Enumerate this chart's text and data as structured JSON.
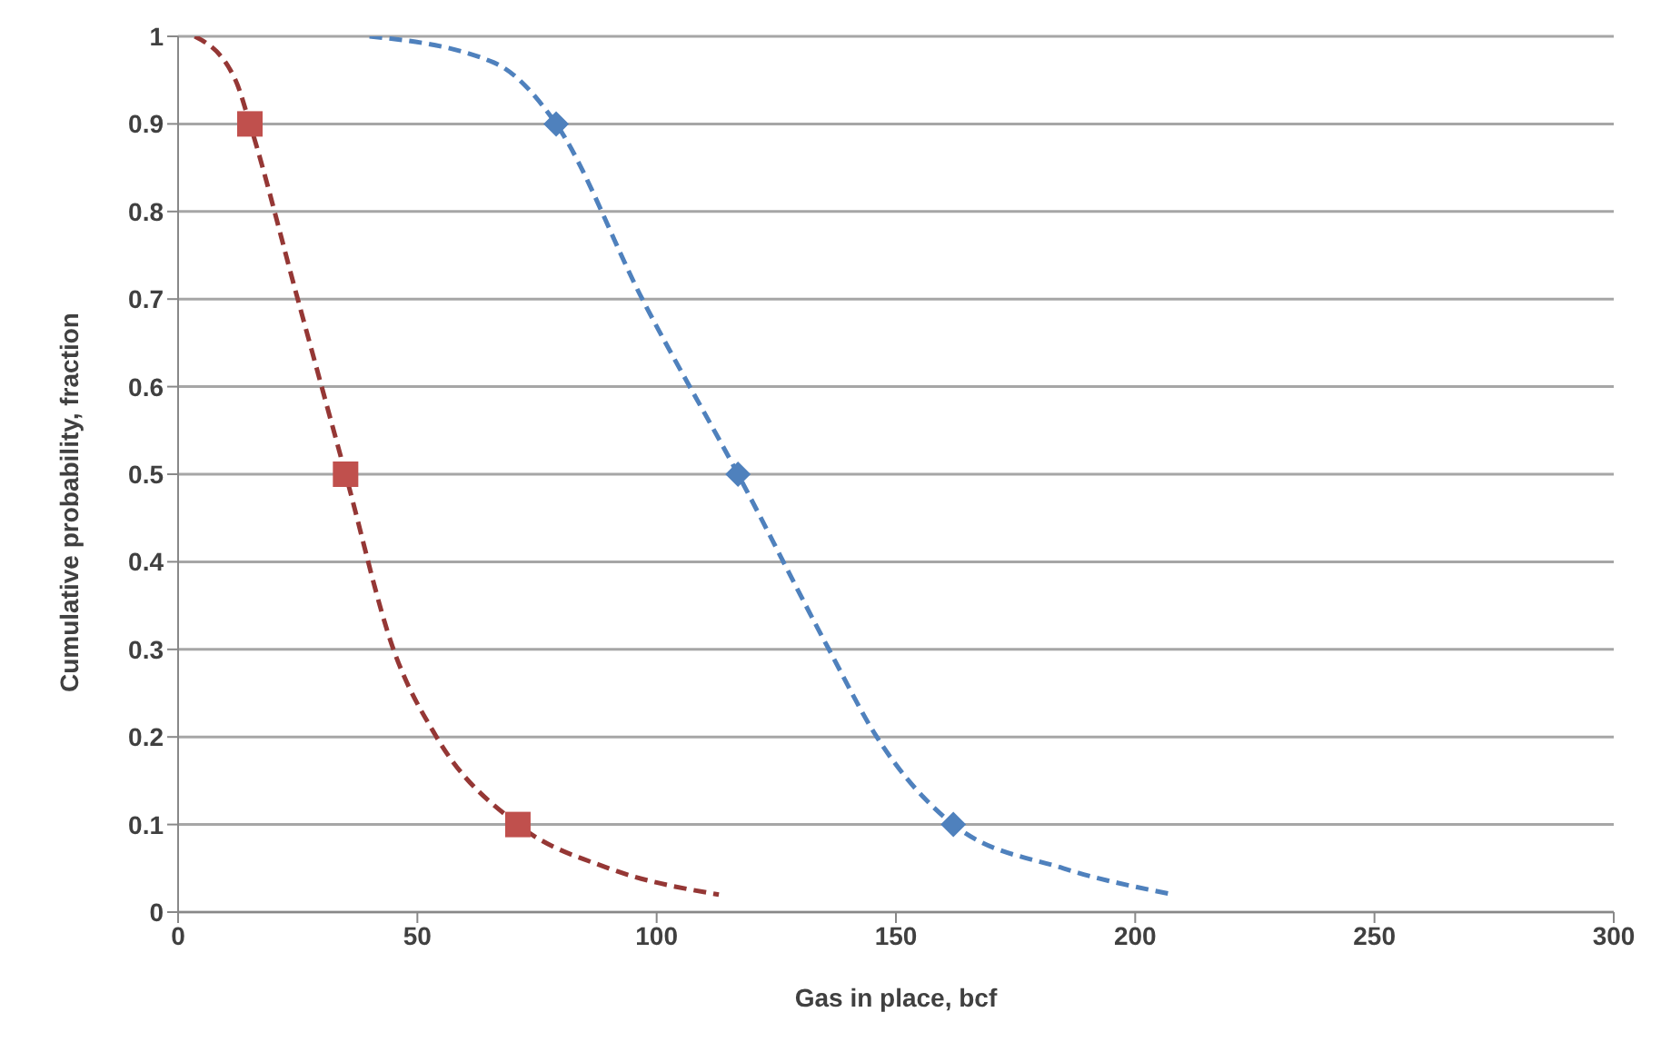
{
  "chart_data": {
    "type": "line",
    "xlabel": "Gas in place, bcf",
    "ylabel": "Cumulative probability, fraction",
    "xlim": [
      0,
      300
    ],
    "xticks": [
      0,
      50,
      100,
      150,
      200,
      250,
      300
    ],
    "ylim": [
      0,
      1
    ],
    "yticks": [
      0,
      0.1,
      0.2,
      0.3,
      0.4,
      0.5,
      0.6,
      0.7,
      0.8,
      0.9,
      1
    ],
    "grid": "y",
    "series": [
      {
        "type": "line",
        "color": "#953735",
        "marker": "none",
        "line_style": "dashed",
        "x": [
          3.5,
          12,
          15,
          25,
          35,
          45,
          54,
          71,
          90,
          113
        ],
        "values": [
          1,
          0.95,
          0.9,
          0.7,
          0.5,
          0.3,
          0.2,
          0.1,
          0.05,
          0.02
        ]
      },
      {
        "type": "line",
        "color": "#4f81bd",
        "marker": "none",
        "line_style": "dashed",
        "x": [
          40,
          66,
          79,
          97,
          117,
          136,
          146,
          162,
          185,
          208
        ],
        "values": [
          1,
          0.97,
          0.9,
          0.7,
          0.5,
          0.3,
          0.2,
          0.1,
          0.05,
          0.02
        ]
      },
      {
        "type": "scatter",
        "color": "#c0504d",
        "marker": "square",
        "x": [
          15,
          35,
          71
        ],
        "values": [
          0.9,
          0.5,
          0.1
        ]
      },
      {
        "type": "scatter",
        "color": "#4f81bd",
        "marker": "diamond",
        "x": [
          79,
          117,
          162
        ],
        "values": [
          0.9,
          0.5,
          0.1
        ]
      }
    ]
  }
}
